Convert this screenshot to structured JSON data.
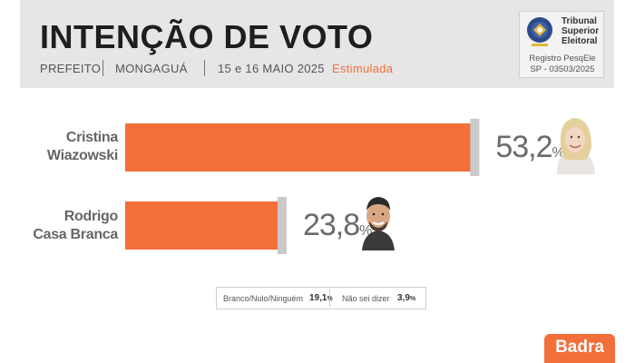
{
  "header": {
    "title": "INTENÇÃO DE VOTO",
    "office": "PREFEITO",
    "city": "MONGAGUÁ",
    "dates": "15 e 16 MAIO 2025",
    "survey_type": "Estimulada"
  },
  "tse": {
    "name": "Tribunal\nSuperior\nEleitoral",
    "registry_label": "Registro PesqEle",
    "registry_number": "SP - 03503/2025"
  },
  "chart_data": {
    "type": "bar",
    "orientation": "horizontal",
    "categories": [
      "Cristina\nWiazowski",
      "Rodrigo\nCasa Branca"
    ],
    "values": [
      53.2,
      23.8
    ],
    "value_labels": [
      "53,2",
      "23,8"
    ],
    "unit": "%",
    "xlim": [
      0,
      60
    ],
    "grid": false,
    "colors": {
      "bar": "#f26f3a",
      "bar_cap": "#c9c9c9",
      "value_text": "#6b6b6b"
    }
  },
  "others": {
    "blank_label": "Branco/Nulo/Ninguém",
    "blank_value": "19,1",
    "unknown_label": "Não sei dizer",
    "unknown_value": "3,9",
    "unit": "%"
  },
  "brand": {
    "logo": "Badra",
    "accent": "#f26f3a"
  }
}
